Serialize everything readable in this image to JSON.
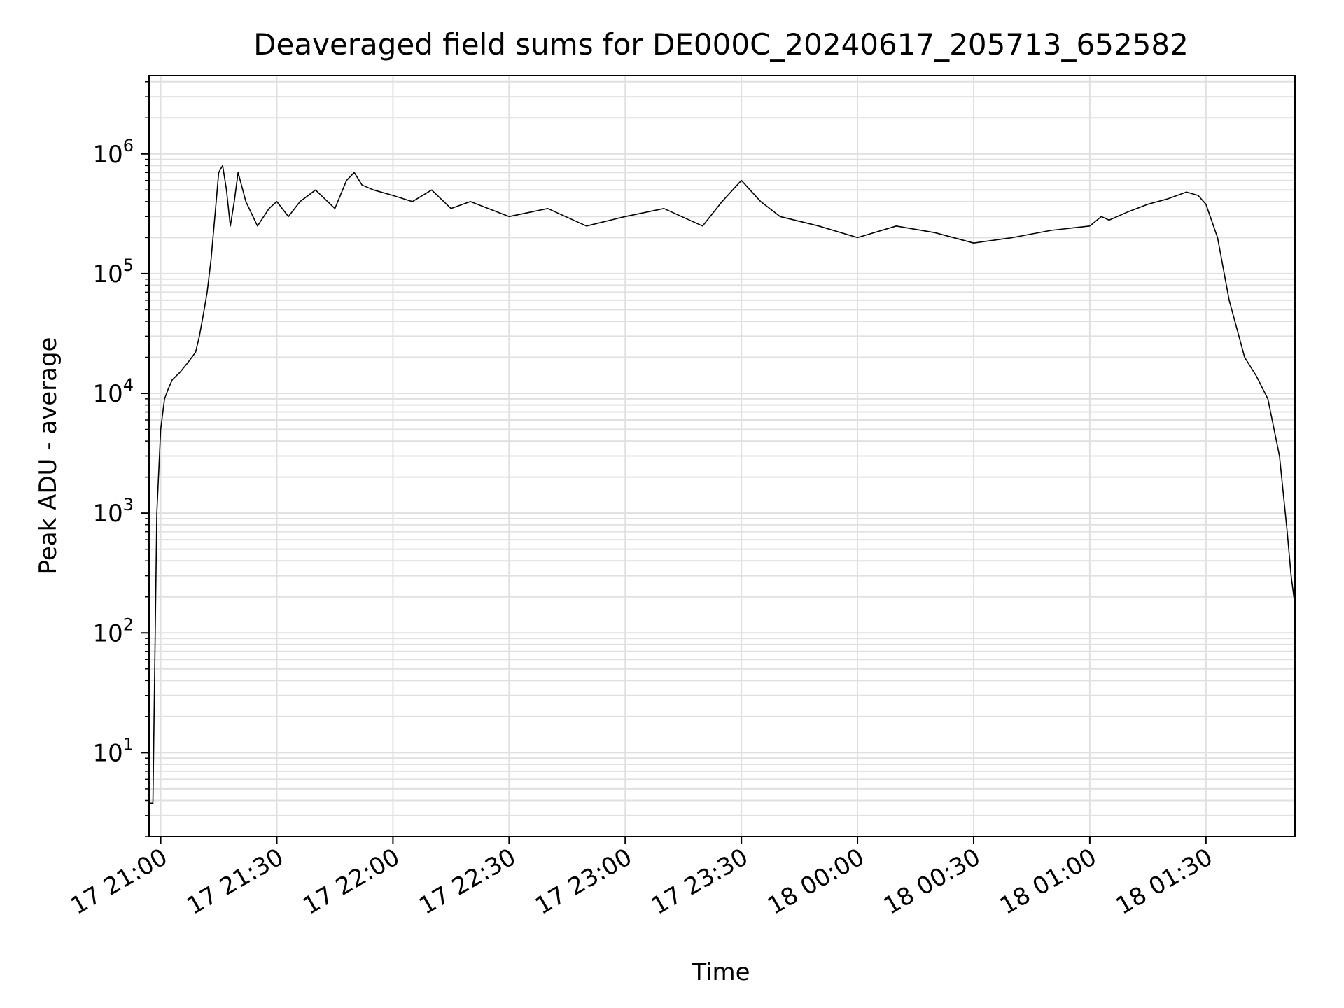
{
  "chart_data": {
    "type": "line",
    "title": "Deaveraged field sums for DE000C_20240617_205713_652582",
    "xlabel": "Time",
    "ylabel": "Peak ADU - average",
    "yscale": "log",
    "ylim": [
      2,
      4500000
    ],
    "xlim": [
      "17 20:57",
      "18 01:53"
    ],
    "grid": true,
    "line_color": "#000000",
    "grid_color": "#e0e0e0",
    "x_ticks": [
      {
        "time": "17 21:00",
        "label": "17 21:00"
      },
      {
        "time": "17 21:30",
        "label": "17 21:30"
      },
      {
        "time": "17 22:00",
        "label": "17 22:00"
      },
      {
        "time": "17 22:30",
        "label": "17 22:30"
      },
      {
        "time": "17 23:00",
        "label": "17 23:00"
      },
      {
        "time": "17 23:30",
        "label": "17 23:30"
      },
      {
        "time": "18 00:00",
        "label": "18 00:00"
      },
      {
        "time": "18 00:30",
        "label": "18 00:30"
      },
      {
        "time": "18 01:00",
        "label": "18 01:00"
      },
      {
        "time": "18 01:30",
        "label": "18 01:30"
      }
    ],
    "y_ticks": [
      {
        "value": 10,
        "base": "10",
        "exp": "1"
      },
      {
        "value": 100,
        "base": "10",
        "exp": "2"
      },
      {
        "value": 1000,
        "base": "10",
        "exp": "3"
      },
      {
        "value": 10000,
        "base": "10",
        "exp": "4"
      },
      {
        "value": 100000,
        "base": "10",
        "exp": "5"
      },
      {
        "value": 1000000,
        "base": "10",
        "exp": "6"
      }
    ],
    "series": [
      {
        "x": [
          "17 20:57",
          "17 20:58",
          "17 20:59",
          "17 21:00",
          "17 21:01",
          "17 21:02",
          "17 21:03",
          "17 21:05",
          "17 21:07",
          "17 21:09",
          "17 21:10",
          "17 21:11",
          "17 21:12",
          "17 21:13",
          "17 21:14",
          "17 21:15",
          "17 21:16",
          "17 21:17",
          "17 21:18",
          "17 21:19",
          "17 21:20",
          "17 21:22",
          "17 21:25",
          "17 21:28",
          "17 21:30",
          "17 21:33",
          "17 21:36",
          "17 21:40",
          "17 21:45",
          "17 21:48",
          "17 21:50",
          "17 21:52",
          "17 21:55",
          "17 22:00",
          "17 22:05",
          "17 22:10",
          "17 22:15",
          "17 22:20",
          "17 22:30",
          "17 22:40",
          "17 22:50",
          "17 23:00",
          "17 23:10",
          "17 23:20",
          "17 23:25",
          "17 23:30",
          "17 23:35",
          "17 23:40",
          "17 23:50",
          "18 00:00",
          "18 00:10",
          "18 00:20",
          "18 00:30",
          "18 00:40",
          "18 00:50",
          "18 01:00",
          "18 01:03",
          "18 01:05",
          "18 01:10",
          "18 01:15",
          "18 01:20",
          "18 01:25",
          "18 01:28",
          "18 01:30",
          "18 01:33",
          "18 01:36",
          "18 01:40",
          "18 01:43",
          "18 01:46",
          "18 01:49",
          "18 01:51",
          "18 01:52",
          "18 01:53"
        ],
        "y": [
          3.8,
          3.8,
          1000,
          5000,
          9000,
          11000,
          13000,
          15000,
          18000,
          22000,
          30000,
          45000,
          70000,
          130000,
          300000,
          700000,
          800000,
          500000,
          250000,
          400000,
          700000,
          400000,
          250000,
          350000,
          400000,
          300000,
          400000,
          500000,
          350000,
          600000,
          700000,
          550000,
          500000,
          450000,
          400000,
          500000,
          350000,
          400000,
          300000,
          350000,
          250000,
          300000,
          350000,
          250000,
          400000,
          600000,
          400000,
          300000,
          250000,
          200000,
          250000,
          220000,
          180000,
          200000,
          230000,
          250000,
          300000,
          280000,
          330000,
          380000,
          420000,
          480000,
          450000,
          380000,
          200000,
          60000,
          20000,
          14000,
          9000,
          3000,
          700,
          300,
          170
        ]
      }
    ]
  }
}
